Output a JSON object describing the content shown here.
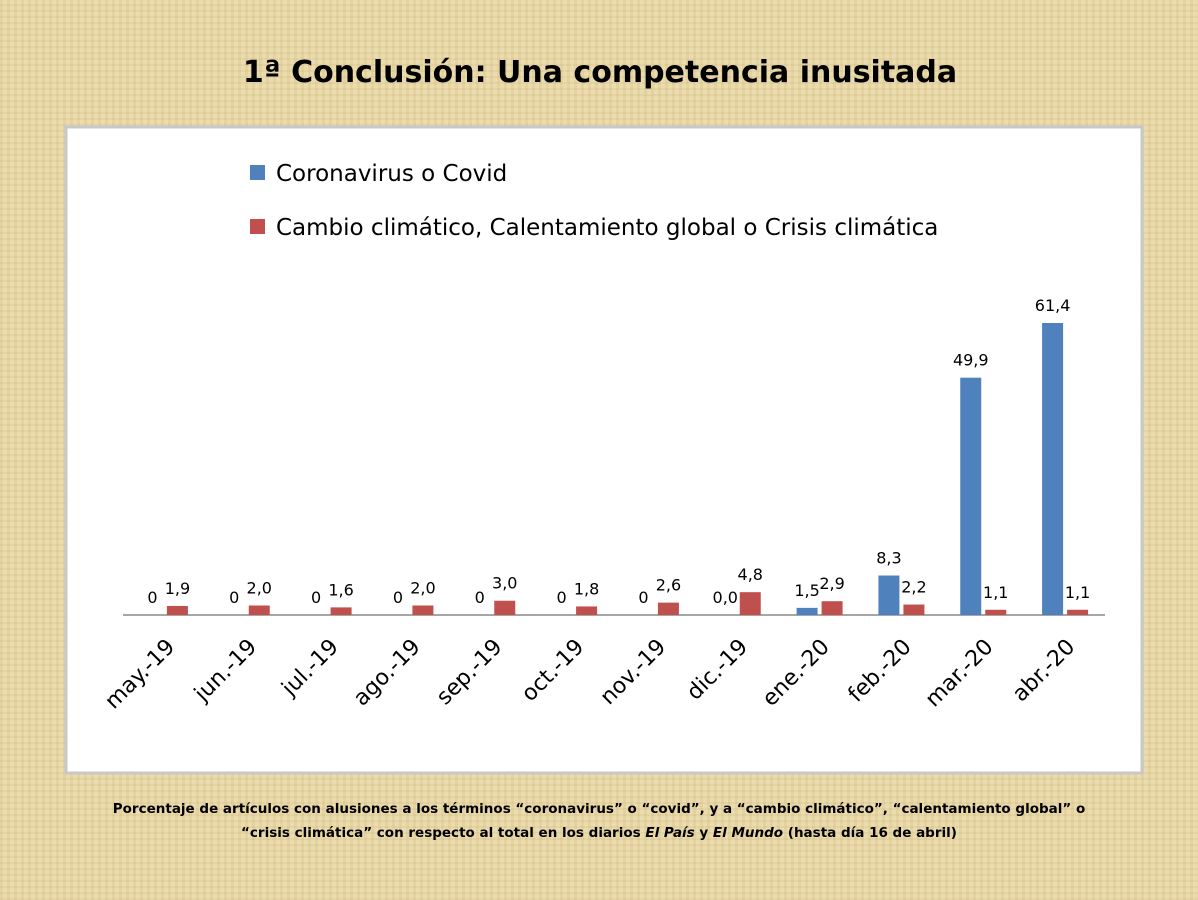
{
  "title": "1ª Conclusión: Una competencia inusitada",
  "chart_data": {
    "type": "bar",
    "categories": [
      "may.-19",
      "jun.-19",
      "jul.-19",
      "ago.-19",
      "sep.-19",
      "oct.-19",
      "nov.-19",
      "dic.-19",
      "ene.-20",
      "feb.-20",
      "mar.-20",
      "abr.-20"
    ],
    "series": [
      {
        "name": "Coronavirus o Covid",
        "color": "#4f81bd",
        "values": [
          0,
          0,
          0,
          0,
          0,
          0,
          0,
          0.0,
          1.5,
          8.3,
          49.9,
          61.4
        ],
        "value_labels": [
          "0",
          "0",
          "0",
          "0",
          "0",
          "0",
          "0",
          "0,0",
          "1,5",
          "8,3",
          "49,9",
          "61,4"
        ]
      },
      {
        "name": "Cambio climático, Calentamiento global o Crisis climática",
        "color": "#c0504d",
        "values": [
          1.9,
          2.0,
          1.6,
          2.0,
          3.0,
          1.8,
          2.6,
          4.8,
          2.9,
          2.2,
          1.1,
          1.1
        ],
        "value_labels": [
          "1,9",
          "2,0",
          "1,6",
          "2,0",
          "3,0",
          "1,8",
          "2,6",
          "4,8",
          "2,9",
          "2,2",
          "1,1",
          "1,1"
        ]
      }
    ]
  },
  "caption": [
    [
      {
        "text": "Porcentaje de artículos con alusiones a los términos “coronavirus” o “covid”, y a “cambio climático”, “calentamiento global” o",
        "italic": false
      }
    ],
    [
      {
        "text": "“crisis climática” con respecto al total en los diarios ",
        "italic": false
      },
      {
        "text": "El País",
        "italic": true
      },
      {
        "text": " y ",
        "italic": false
      },
      {
        "text": "El Mundo",
        "italic": true
      },
      {
        "text": " (hasta día 16 de abril)",
        "italic": false
      }
    ]
  ]
}
